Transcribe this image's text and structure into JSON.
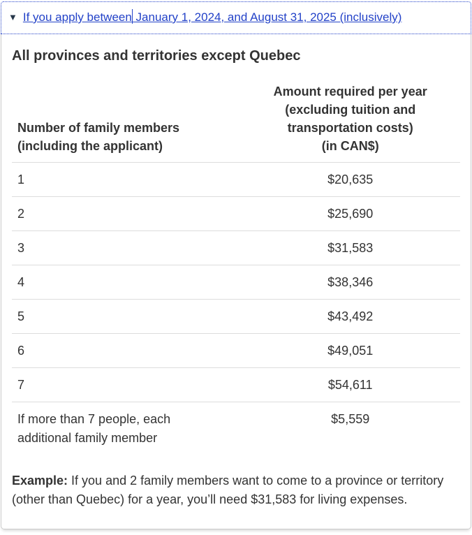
{
  "details": {
    "state": "expanded",
    "caret_icon": "▼",
    "summary_before_caret": "If you apply between",
    "summary_after_caret": " January 1, 2024, and August 31, 2025 (inclusively)"
  },
  "section": {
    "heading": "All provinces and territories except Quebec"
  },
  "table": {
    "col1_header_lines": [
      "Number of family members",
      "(including the applicant)"
    ],
    "col2_header_lines": [
      "Amount required per year",
      "(excluding tuition and",
      "transportation costs)",
      "(in CAN$)"
    ],
    "rows": [
      {
        "members": "1",
        "amount": "$20,635"
      },
      {
        "members": "2",
        "amount": "$25,690"
      },
      {
        "members": "3",
        "amount": "$31,583"
      },
      {
        "members": "4",
        "amount": "$38,346"
      },
      {
        "members": "5",
        "amount": "$43,492"
      },
      {
        "members": "6",
        "amount": "$49,051"
      },
      {
        "members": "7",
        "amount": "$54,611"
      },
      {
        "members": "If more than 7 people, each additional family member",
        "amount": "$5,559"
      }
    ]
  },
  "example": {
    "label": "Example:",
    "text": " If you and 2 family members want to come to a province or territory (other than Quebec) for a year, you’ll need $31,583 for living expenses."
  },
  "colors": {
    "link_blue": "#2342c8",
    "marker_navy": "#26374a",
    "text": "#333333",
    "panel_border": "#cccccc",
    "row_border": "#dddddd"
  }
}
